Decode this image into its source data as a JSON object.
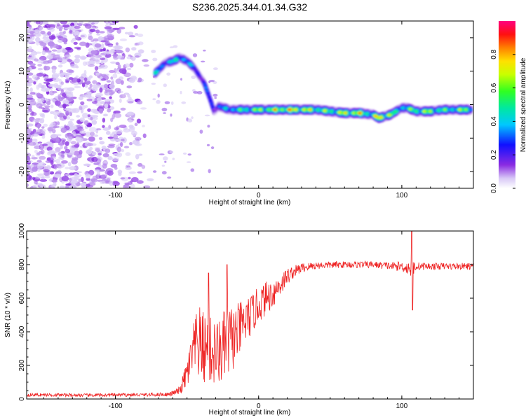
{
  "title": "S236.2025.344.01.34.G32",
  "chart_data": [
    {
      "type": "heatmap",
      "title": "S236.2025.344.01.34.G32",
      "xlabel": "Height of straight line (km)",
      "ylabel": "Frequency (Hz)",
      "xlim": [
        -162,
        150
      ],
      "ylim": [
        -25,
        25
      ],
      "xticks": [
        -100,
        0,
        100
      ],
      "yticks": [
        20,
        10,
        0,
        -10,
        -20
      ],
      "colorbar": {
        "label": "Normalized spectral amplitude",
        "range": [
          0,
          1
        ],
        "ticks": [
          0.0,
          0.2,
          0.4,
          0.6,
          0.8
        ]
      },
      "ridge": {
        "x": [
          -72,
          -65,
          -60,
          -55,
          -50,
          -45,
          -42,
          -38,
          -35,
          -31,
          -28,
          -20,
          -10,
          0,
          10,
          20,
          30,
          40,
          50,
          60,
          70,
          80,
          84,
          88,
          92,
          96,
          100,
          104,
          110,
          120,
          130,
          140,
          148
        ],
        "freq": [
          9.5,
          12.5,
          13,
          14,
          13,
          11,
          9,
          6.5,
          3,
          -2,
          -0.5,
          -1.5,
          -1.5,
          -1.5,
          -1.5,
          -1.5,
          -1.5,
          -1.5,
          -2,
          -2.5,
          -2.5,
          -3,
          -4,
          -3.5,
          -3,
          -2,
          -1,
          -1,
          -2,
          -2,
          -1.5,
          -1.5,
          -1.5
        ],
        "amplitude": [
          0.45,
          0.4,
          0.5,
          0.55,
          0.45,
          0.35,
          0.3,
          0.3,
          0.35,
          0.3,
          0.35,
          0.5,
          0.6,
          0.7,
          0.78,
          0.88,
          0.85,
          0.72,
          0.65,
          0.8,
          0.85,
          0.6,
          0.9,
          0.85,
          0.8,
          0.5,
          0.6,
          0.55,
          0.7,
          0.72,
          0.6,
          0.65,
          0.78
        ]
      },
      "noise_region_x": [
        -162,
        -75
      ]
    },
    {
      "type": "line",
      "xlabel": "Height of straight line (km)",
      "ylabel": "SNR (10 * v/v)",
      "xlim": [
        -162,
        150
      ],
      "ylim": [
        0,
        1000
      ],
      "xticks": [
        -100,
        0,
        100
      ],
      "yticks": [
        0,
        200,
        400,
        600,
        800,
        1000
      ],
      "series": [
        {
          "name": "SNR",
          "color": "#ee2222",
          "x": [
            -162,
            -140,
            -120,
            -100,
            -80,
            -62,
            -55,
            -50,
            -45,
            -42,
            -38,
            -33,
            -28,
            -22,
            -16,
            -10,
            -5,
            0,
            5,
            10,
            15,
            20,
            25,
            30,
            40,
            60,
            80,
            95,
            100,
            104,
            107,
            110,
            120,
            140,
            150
          ],
          "mean": [
            25,
            24,
            22,
            24,
            25,
            28,
            50,
            150,
            300,
            330,
            300,
            280,
            270,
            330,
            380,
            450,
            500,
            560,
            600,
            630,
            680,
            730,
            760,
            780,
            795,
            800,
            800,
            790,
            790,
            780,
            780,
            790,
            790,
            790,
            790
          ],
          "noise": [
            10,
            10,
            10,
            10,
            10,
            12,
            25,
            90,
            170,
            230,
            220,
            210,
            200,
            230,
            180,
            150,
            120,
            110,
            100,
            90,
            70,
            50,
            35,
            30,
            22,
            20,
            20,
            25,
            30,
            40,
            60,
            25,
            20,
            20,
            20
          ],
          "spikes": [
            {
              "x": 107,
              "y": 1040
            },
            {
              "x": 107.5,
              "y": 530
            },
            {
              "x": -22,
              "y": 800
            },
            {
              "x": -35,
              "y": 750
            }
          ]
        }
      ]
    }
  ]
}
